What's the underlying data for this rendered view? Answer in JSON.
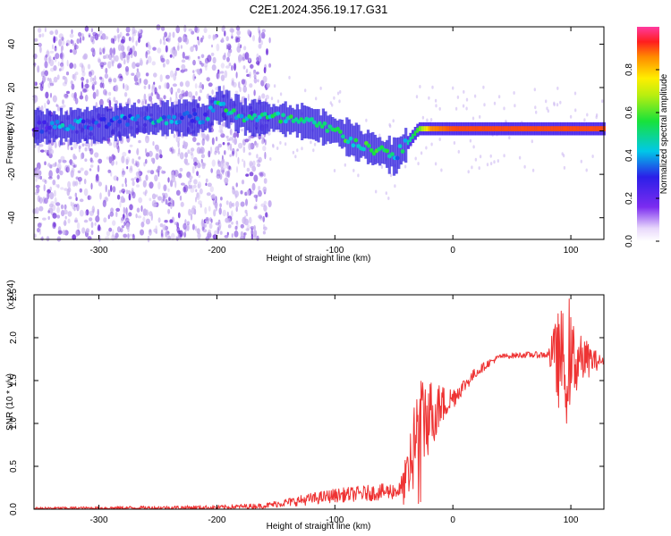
{
  "title": "C2E1.2024.356.19.17.G31",
  "colors": {
    "snr_line": "#ee3333",
    "band_core": "#3322dd",
    "scatter_light": "#c9b3f0",
    "scatter_dark": "#6a2ad8"
  },
  "chart_data": [
    {
      "type": "heatmap",
      "title": "C2E1.2024.356.19.17.G31",
      "xlabel": "Height of straight line (km)",
      "ylabel": "Frequency (Hz)",
      "xlim": [
        -355,
        128
      ],
      "ylim": [
        -50,
        48
      ],
      "xticks": [
        -300,
        -200,
        -100,
        0,
        100
      ],
      "yticks": [
        -40,
        -20,
        0,
        20,
        40
      ],
      "colorbar": {
        "label": "Normalized spectral amplitude",
        "range": [
          0,
          1
        ],
        "ticks": [
          "0.0",
          "0.2",
          "0.4",
          "0.6",
          "0.8"
        ],
        "tick_values": [
          0.0,
          0.2,
          0.4,
          0.6,
          0.8
        ]
      },
      "signal_track": {
        "x": [
          -355,
          -330,
          -300,
          -270,
          -240,
          -210,
          -200,
          -175,
          -150,
          -125,
          -100,
          -80,
          -60,
          -50,
          -40,
          -30,
          -20,
          0,
          20,
          60,
          100,
          128
        ],
        "y": [
          2,
          2,
          3,
          5,
          6,
          6,
          12,
          6,
          6,
          4,
          0,
          -6,
          -10,
          -12,
          -6,
          1,
          1,
          1,
          1,
          1,
          1,
          1
        ],
        "amplitude": [
          0.2,
          0.4,
          0.3,
          0.4,
          0.4,
          0.35,
          0.5,
          0.45,
          0.5,
          0.55,
          0.5,
          0.5,
          0.55,
          0.4,
          0.45,
          0.6,
          0.85,
          0.9,
          0.9,
          0.9,
          0.9,
          0.9
        ]
      },
      "noise_region_x": [
        -355,
        -155
      ]
    },
    {
      "type": "line",
      "xlabel": "Height of straight line (km)",
      "ylabel": "SNR (10 * v/v)",
      "y_multiplier": "(x10^4)",
      "xlim": [
        -355,
        128
      ],
      "ylim": [
        0,
        2.5
      ],
      "xticks": [
        -300,
        -200,
        -100,
        0,
        100
      ],
      "yticks": [
        "0.0",
        "0.5",
        "1.0",
        "1.5",
        "2.0",
        "2.5"
      ],
      "ytick_values": [
        0,
        0.5,
        1.0,
        1.5,
        2.0,
        2.5
      ],
      "envelope": {
        "x": [
          -355,
          -200,
          -160,
          -140,
          -120,
          -100,
          -80,
          -60,
          -45,
          -40,
          -35,
          -30,
          -25,
          -20,
          -15,
          -10,
          -5,
          0,
          10,
          20,
          30,
          40,
          60,
          80,
          90,
          95,
          100,
          105,
          110,
          128
        ],
        "y": [
          0.01,
          0.02,
          0.04,
          0.08,
          0.12,
          0.16,
          0.18,
          0.2,
          0.22,
          0.3,
          0.6,
          0.95,
          1.05,
          1.1,
          1.15,
          1.2,
          1.25,
          1.3,
          1.45,
          1.6,
          1.7,
          1.78,
          1.8,
          1.8,
          1.75,
          1.75,
          1.72,
          1.75,
          1.75,
          1.72
        ]
      },
      "noise_amplitude": {
        "x": [
          -355,
          -160,
          -120,
          -80,
          -45,
          -35,
          -25,
          -15,
          -5,
          5,
          20,
          40,
          80,
          90,
          100,
          108,
          128
        ],
        "y": [
          0.015,
          0.03,
          0.07,
          0.09,
          0.1,
          0.5,
          0.55,
          0.35,
          0.18,
          0.1,
          0.06,
          0.03,
          0.04,
          0.6,
          0.55,
          0.3,
          0.03
        ]
      }
    }
  ]
}
